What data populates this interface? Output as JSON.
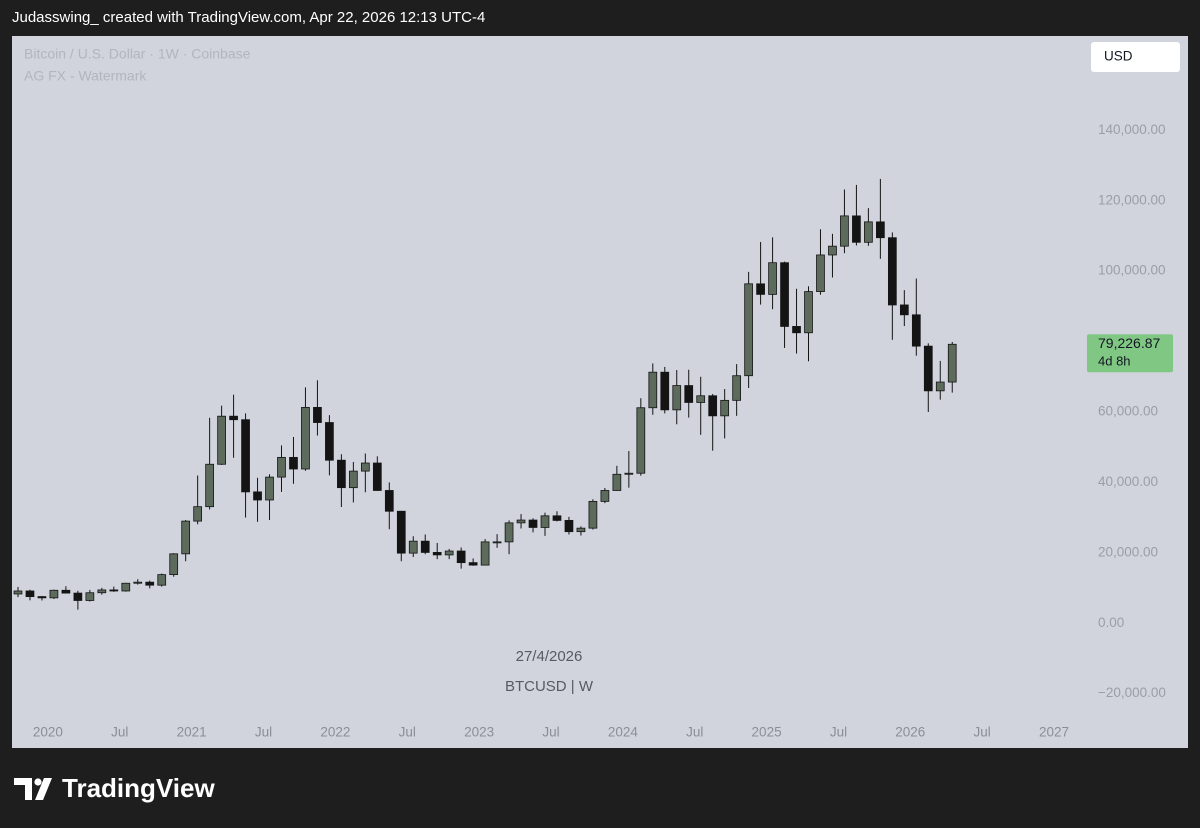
{
  "header": {
    "text": "Judasswing_ created with TradingView.com, Apr 22, 2026 12:13 UTC-4"
  },
  "footer": {
    "brand": "TradingView"
  },
  "chart_data": {
    "type": "candlestick",
    "title": "Bitcoin / U.S. Dollar · 1W · Coinbase",
    "subtitle": "AG FX - Watermark",
    "currency": "USD",
    "crosshair_date": "27/4/2026",
    "symbol_label": "BTCUSD | W",
    "countdown": "4d 8h",
    "last_price": {
      "value": 79226.87,
      "label": "79,226.87"
    },
    "up_color": "#5d6b5d",
    "down_color": "#141414",
    "last_price_color": "#81c784",
    "grid": false,
    "x": [
      "2019-10",
      "2019-11",
      "2019-12",
      "2020-01",
      "2020-02",
      "2020-03",
      "2020-04",
      "2020-05",
      "2020-06",
      "2020-07",
      "2020-08",
      "2020-09",
      "2020-10",
      "2020-11",
      "2020-12",
      "2021-01",
      "2021-02",
      "2021-03",
      "2021-04",
      "2021-05",
      "2021-06",
      "2021-07",
      "2021-08",
      "2021-09",
      "2021-10",
      "2021-11",
      "2021-12",
      "2022-01",
      "2022-02",
      "2022-03",
      "2022-04",
      "2022-05",
      "2022-06",
      "2022-07",
      "2022-08",
      "2022-09",
      "2022-10",
      "2022-11",
      "2022-12",
      "2023-01",
      "2023-02",
      "2023-03",
      "2023-04",
      "2023-05",
      "2023-06",
      "2023-07",
      "2023-08",
      "2023-09",
      "2023-10",
      "2023-11",
      "2023-12",
      "2024-01",
      "2024-02",
      "2024-03",
      "2024-04",
      "2024-05",
      "2024-06",
      "2024-07",
      "2024-08",
      "2024-09",
      "2024-10",
      "2024-11",
      "2024-12",
      "2025-01",
      "2025-02",
      "2025-03",
      "2025-04",
      "2025-05",
      "2025-06",
      "2025-07",
      "2025-08",
      "2025-09",
      "2025-10",
      "2025-11",
      "2025-12",
      "2026-01",
      "2026-02",
      "2026-03",
      "2026-04"
    ],
    "open": [
      8300,
      9150,
      7550,
      7200,
      9350,
      8550,
      6450,
      8650,
      9450,
      9150,
      11350,
      11650,
      10800,
      13800,
      19700,
      29000,
      33100,
      45150,
      58800,
      57800,
      37300,
      35000,
      41500,
      47100,
      43800,
      61300,
      57000,
      46300,
      38500,
      43200,
      45500,
      37700,
      31800,
      19900,
      23300,
      20100,
      19400,
      20500,
      17200,
      16500,
      23100,
      23100,
      28500,
      29300,
      27200,
      30500,
      29200,
      26000,
      27000,
      34600,
      37700,
      42300,
      42600,
      61200,
      71300,
      60600,
      67500,
      62700,
      64600,
      58900,
      63300,
      70300,
      96400,
      93400,
      102400,
      84300,
      82500,
      94200,
      104600,
      107100,
      115700,
      108200,
      114000,
      109500,
      90400,
      87600,
      78700,
      66000,
      68500
    ],
    "high": [
      10300,
      9500,
      7750,
      9550,
      10500,
      9200,
      9450,
      10050,
      10400,
      11450,
      12500,
      12100,
      14100,
      19900,
      29300,
      41950,
      58350,
      61800,
      64900,
      59600,
      41300,
      42300,
      50500,
      52900,
      67000,
      69000,
      59100,
      48000,
      45800,
      48200,
      47400,
      40000,
      31900,
      24700,
      25200,
      22800,
      21100,
      21500,
      18400,
      23900,
      25300,
      29200,
      31000,
      29800,
      31400,
      31800,
      30200,
      27500,
      35200,
      38400,
      44700,
      48900,
      63900,
      73800,
      72800,
      71900,
      72000,
      70000,
      65100,
      66500,
      73600,
      99800,
      108300,
      109600,
      102700,
      95000,
      95700,
      111900,
      110600,
      123200,
      124500,
      117900,
      126200,
      111000,
      94600,
      97900,
      79500,
      74500,
      79900
    ],
    "low": [
      7400,
      6500,
      6450,
      6850,
      8450,
      3850,
      6150,
      8100,
      8900,
      8950,
      10950,
      9900,
      10400,
      13200,
      17600,
      28100,
      32300,
      44950,
      47000,
      30000,
      28800,
      29300,
      37300,
      39600,
      43300,
      53300,
      42000,
      33000,
      34300,
      37200,
      37600,
      26700,
      17600,
      18800,
      19600,
      18200,
      18200,
      15500,
      16300,
      16500,
      21400,
      19600,
      26900,
      25800,
      24800,
      28900,
      25200,
      24900,
      26600,
      34100,
      37600,
      38500,
      41900,
      59200,
      59600,
      56500,
      58400,
      53500,
      49000,
      52500,
      58900,
      66800,
      90500,
      89200,
      78200,
      76600,
      74400,
      93300,
      98200,
      105100,
      107300,
      107200,
      103500,
      80500,
      84400,
      76000,
      60000,
      63500,
      65500
    ],
    "close": [
      9150,
      7550,
      7200,
      9350,
      8550,
      6450,
      8650,
      9450,
      9150,
      11350,
      11650,
      10800,
      13800,
      19700,
      29000,
      33100,
      45150,
      58800,
      57800,
      37300,
      35000,
      41500,
      47100,
      43800,
      61300,
      57000,
      46300,
      38500,
      43200,
      45500,
      37700,
      31800,
      19900,
      23300,
      20100,
      19400,
      20500,
      17200,
      16500,
      23100,
      23100,
      28500,
      29300,
      27200,
      30500,
      29200,
      26000,
      27000,
      34600,
      37700,
      42300,
      42600,
      61200,
      71300,
      60600,
      67500,
      62700,
      64600,
      58900,
      63300,
      70300,
      96400,
      93400,
      102400,
      84300,
      82500,
      94200,
      104600,
      107100,
      115700,
      108200,
      114000,
      109500,
      90400,
      87600,
      78700,
      66000,
      68500,
      79226.87
    ],
    "xlim": [
      "2019-10",
      "2027-03"
    ],
    "xticks": [
      {
        "value": "2020-01",
        "label": "2020"
      },
      {
        "value": "2020-07",
        "label": "Jul"
      },
      {
        "value": "2021-01",
        "label": "2021"
      },
      {
        "value": "2021-07",
        "label": "Jul"
      },
      {
        "value": "2022-01",
        "label": "2022"
      },
      {
        "value": "2022-07",
        "label": "Jul"
      },
      {
        "value": "2023-01",
        "label": "2023"
      },
      {
        "value": "2023-07",
        "label": "Jul"
      },
      {
        "value": "2024-01",
        "label": "2024"
      },
      {
        "value": "2024-07",
        "label": "Jul"
      },
      {
        "value": "2025-01",
        "label": "2025"
      },
      {
        "value": "2025-07",
        "label": "Jul"
      },
      {
        "value": "2026-01",
        "label": "2026"
      },
      {
        "value": "2026-07",
        "label": "Jul"
      },
      {
        "value": "2027-01",
        "label": "2027"
      }
    ],
    "ylim": [
      -27500,
      166800
    ],
    "yticks": [
      {
        "value": -20000,
        "label": "−20,000.00"
      },
      {
        "value": 0,
        "label": "0.00"
      },
      {
        "value": 20000,
        "label": "20,000.00"
      },
      {
        "value": 40000,
        "label": "40,000.00"
      },
      {
        "value": 60000,
        "label": "60,000.00"
      },
      {
        "value": 100000,
        "label": "100,000.00"
      },
      {
        "value": 120000,
        "label": "120,000.00"
      },
      {
        "value": 140000,
        "label": "140,000.00"
      }
    ]
  }
}
